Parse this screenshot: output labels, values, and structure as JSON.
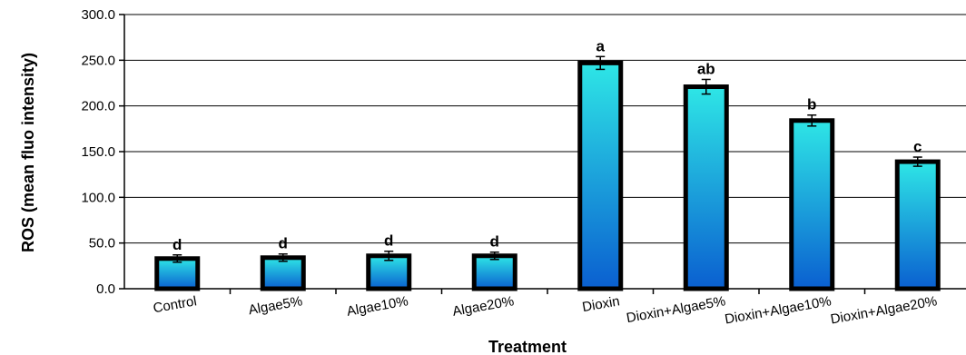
{
  "chart_data": {
    "type": "bar",
    "title": "",
    "xlabel": "Treatment",
    "ylabel": "ROS (mean fluo intensity)",
    "ylim": [
      0,
      300
    ],
    "yticks": [
      "0.0",
      "50.0",
      "100.0",
      "150.0",
      "200.0",
      "250.0",
      "300.0"
    ],
    "grid": true,
    "categories": [
      "Control",
      "Algae5%",
      "Algae10%",
      "Algae20%",
      "Dioxin",
      "Dioxin+Algae5%",
      "Dioxin+Algae10%",
      "Dioxin+Algae20%"
    ],
    "values": [
      33,
      34,
      36,
      36,
      247,
      221,
      184,
      139
    ],
    "errors": [
      4,
      4,
      5,
      4,
      7,
      8,
      6,
      5
    ],
    "letters": [
      "d",
      "d",
      "d",
      "d",
      "a",
      "ab",
      "b",
      "c"
    ],
    "colors": {
      "bar_top": "#2ee6e6",
      "bar_bottom": "#0a5fd0",
      "outline": "#000000",
      "grid": "#000000"
    }
  }
}
